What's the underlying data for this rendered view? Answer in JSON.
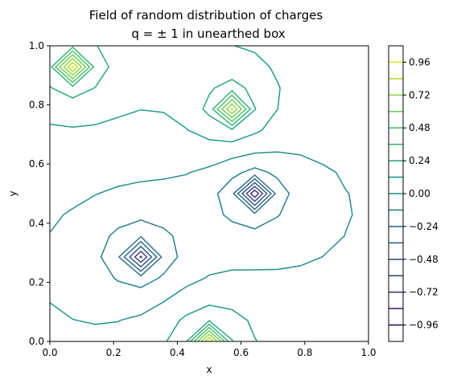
{
  "chart_data": {
    "type": "contour",
    "title_line1": "Field of random distribution of charges",
    "title_line2": "q = ± 1 in unearthed box",
    "xlabel": "x",
    "ylabel": "y",
    "xlim": [
      0,
      1
    ],
    "ylim": [
      0,
      1
    ],
    "x_ticks": [
      "0.0",
      "0.2",
      "0.4",
      "0.6",
      "0.8",
      "1.0"
    ],
    "y_ticks": [
      "0.0",
      "0.2",
      "0.4",
      "0.6",
      "0.8",
      "1.0"
    ],
    "colorbar_ticks": [
      "0.96",
      "0.72",
      "0.48",
      "0.24",
      "0.00",
      "−0.24",
      "−0.48",
      "−0.72",
      "−0.96"
    ],
    "colorbar_range": [
      -1.08,
      1.08
    ],
    "colorbar_step": 0.12,
    "colormap": "viridis",
    "charges": [
      {
        "x": 0.07,
        "y": 0.93,
        "q": 1
      },
      {
        "x": 0.57,
        "y": 0.79,
        "q": 1
      },
      {
        "x": 0.64,
        "y": 0.5,
        "q": -1
      },
      {
        "x": 0.28,
        "y": 0.29,
        "q": -1
      },
      {
        "x": 0.5,
        "y": 0.0,
        "q": 1
      }
    ]
  }
}
